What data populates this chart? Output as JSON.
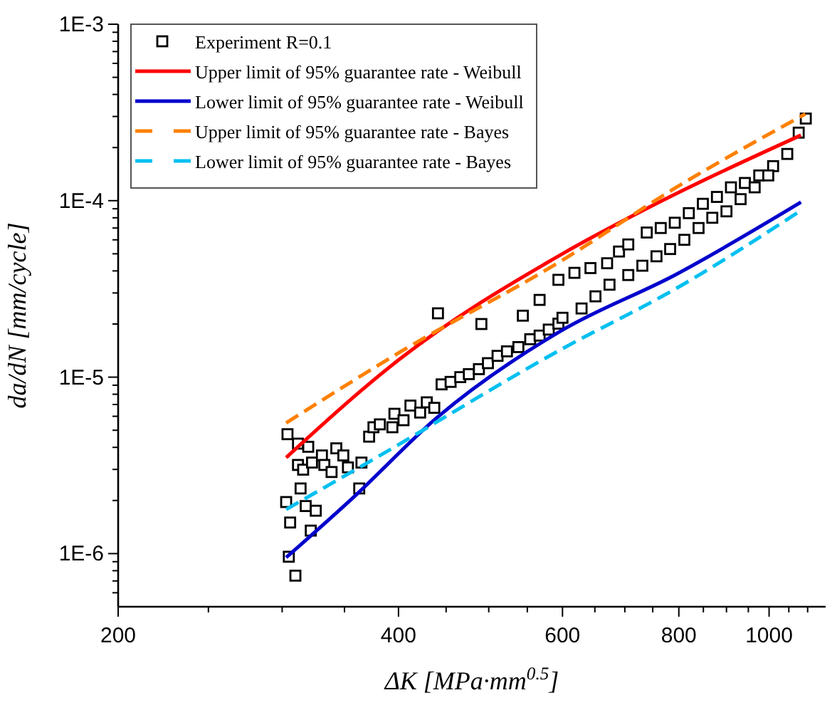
{
  "chart_data": {
    "type": "scatter",
    "xlabel": "ΔK [MPa·mm$^{0.5}$]",
    "ylabel": "da/dN [mm/cycle]",
    "log": "xy",
    "legend": "top left",
    "xlim": [
      200,
      1150
    ],
    "ylim": [
      5e-07,
      0.001
    ],
    "xticks": [
      200,
      {
        "value": 250,
        "label": null
      },
      {
        "value": 300,
        "label": null
      },
      {
        "value": 350,
        "label": null
      },
      400,
      {
        "value": 450,
        "label": null
      },
      {
        "value": 500,
        "label": null
      },
      {
        "value": 550,
        "label": null
      },
      600,
      {
        "value": 650,
        "label": null
      },
      {
        "value": 700,
        "label": null
      },
      {
        "value": 750,
        "label": null
      },
      800,
      {
        "value": 850,
        "label": null
      },
      {
        "value": 900,
        "label": null
      },
      {
        "value": 950,
        "label": null
      },
      1000,
      {
        "value": 1050,
        "label": null
      },
      {
        "value": 1100,
        "label": null
      }
    ],
    "yticks": [
      {
        "value": 6e-07,
        "label": null
      },
      {
        "value": 7e-07,
        "label": null
      },
      {
        "value": 8e-07,
        "label": null
      },
      {
        "value": 9e-07,
        "label": null
      },
      {
        "value": 1e-06,
        "label": "1E-6"
      },
      {
        "value": 2e-06,
        "label": null
      },
      {
        "value": 3e-06,
        "label": null
      },
      {
        "value": 4e-06,
        "label": null
      },
      {
        "value": 5e-06,
        "label": null
      },
      {
        "value": 6e-06,
        "label": null
      },
      {
        "value": 7e-06,
        "label": null
      },
      {
        "value": 8e-06,
        "label": null
      },
      {
        "value": 9e-06,
        "label": null
      },
      {
        "value": 1e-05,
        "label": "1E-5"
      },
      {
        "value": 2e-05,
        "label": null
      },
      {
        "value": 3e-05,
        "label": null
      },
      {
        "value": 4e-05,
        "label": null
      },
      {
        "value": 5e-05,
        "label": null
      },
      {
        "value": 6e-05,
        "label": null
      },
      {
        "value": 7e-05,
        "label": null
      },
      {
        "value": 8e-05,
        "label": null
      },
      {
        "value": 9e-05,
        "label": null
      },
      {
        "value": 0.0001,
        "label": "1E-4"
      },
      {
        "value": 0.0002,
        "label": null
      },
      {
        "value": 0.0003,
        "label": null
      },
      {
        "value": 0.0004,
        "label": null
      },
      {
        "value": 0.0005,
        "label": null
      },
      {
        "value": 0.0006,
        "label": null
      },
      {
        "value": 0.0007,
        "label": null
      },
      {
        "value": 0.0008,
        "label": null
      },
      {
        "value": 0.0009,
        "label": null
      },
      {
        "value": 0.001,
        "label": "1E-3"
      }
    ],
    "series": [
      {
        "name": "Experiment R=0.1",
        "marker": "square",
        "color": "#000000",
        "x": [
          304,
          312,
          320,
          312,
          316,
          323,
          331,
          333,
          339,
          343,
          349,
          353,
          365,
          303,
          314,
          318,
          326,
          306,
          322,
          305,
          310,
          363,
          372,
          376,
          382,
          394,
          396,
          405,
          412,
          422,
          429,
          437,
          445,
          455,
          466,
          476,
          488,
          499,
          511,
          523,
          538,
          554,
          567,
          580,
          594,
          441,
          491,
          544,
          567,
          594,
          618,
          643,
          670,
          690,
          706,
          739,
          765,
          792,
          820,
          849,
          879,
          910,
          942,
          976,
          1010,
          1046,
          1076,
          1095,
          600,
          629,
          651,
          674,
          706,
          731,
          757,
          783,
          811,
          840,
          869,
          900,
          932,
          965,
          998
        ],
        "values": [
          4.75e-06,
          4.2e-06,
          4.03e-06,
          3.18e-06,
          2.99e-06,
          3.28e-06,
          3.6e-06,
          3.18e-06,
          2.9e-06,
          3.95e-06,
          3.6e-06,
          3.08e-06,
          3.28e-06,
          1.96e-06,
          2.34e-06,
          1.86e-06,
          1.75e-06,
          1.5e-06,
          1.35e-06,
          9.6e-07,
          7.5e-07,
          2.34e-06,
          4.6e-06,
          5.2e-06,
          5.4e-06,
          5.2e-06,
          6.2e-06,
          5.7e-06,
          6.9e-06,
          6.3e-06,
          7.2e-06,
          6.7e-06,
          9.1e-06,
          9.4e-06,
          1e-05,
          1.04e-05,
          1.11e-05,
          1.2e-05,
          1.32e-05,
          1.4e-05,
          1.48e-05,
          1.64e-05,
          1.72e-05,
          1.86e-05,
          2.01e-05,
          2.3e-05,
          2e-05,
          2.23e-05,
          2.74e-05,
          3.56e-05,
          3.9e-05,
          4.15e-05,
          4.42e-05,
          5.15e-05,
          5.65e-05,
          6.6e-05,
          7e-05,
          7.5e-05,
          8.5e-05,
          9.6e-05,
          0.000105,
          0.000119,
          0.000126,
          0.000139,
          0.000157,
          0.000184,
          0.000243,
          0.000292,
          2.17e-05,
          2.45e-05,
          2.87e-05,
          3.34e-05,
          3.79e-05,
          4.28e-05,
          4.84e-05,
          5.32e-05,
          6e-05,
          7e-05,
          8e-05,
          8.7e-05,
          0.000102,
          0.000119,
          0.000139
        ]
      },
      {
        "name": "Upper limit of 95% guarantee rate - Weibull",
        "type": "line",
        "line_style": "solid",
        "color": "#ff0000",
        "x": [
          303,
          400,
          600,
          732,
          1082
        ],
        "values": [
          3.5e-06,
          1.25e-05,
          5e-05,
          8.8e-05,
          0.000235
        ]
      },
      {
        "name": "Lower limit of 95% guarantee rate - Weibull",
        "type": "line",
        "line_style": "solid",
        "color": "#0000cc",
        "x": [
          303,
          357,
          440,
          600,
          793,
          1082
        ],
        "values": [
          9.5e-07,
          2.06e-06,
          5.9e-06,
          1.85e-05,
          3.8e-05,
          9.8e-05
        ]
      },
      {
        "name": "Upper limit of 95% guarantee rate - Bayes",
        "type": "line",
        "line_style": "dashed",
        "color": "#ff8000",
        "x": [
          303,
          400,
          600,
          793,
          1094
        ],
        "values": [
          5.5e-06,
          1.37e-05,
          4.6e-05,
          0.000118,
          0.00031
        ]
      },
      {
        "name": "Lower limit of 95% guarantee rate - Bayes",
        "type": "line",
        "line_style": "dashed",
        "color": "#00c0f0",
        "x": [
          303,
          373,
          600,
          793,
          1082
        ],
        "values": [
          1.78e-06,
          3.34e-06,
          1.45e-05,
          3.16e-05,
          8.8e-05
        ]
      }
    ]
  }
}
